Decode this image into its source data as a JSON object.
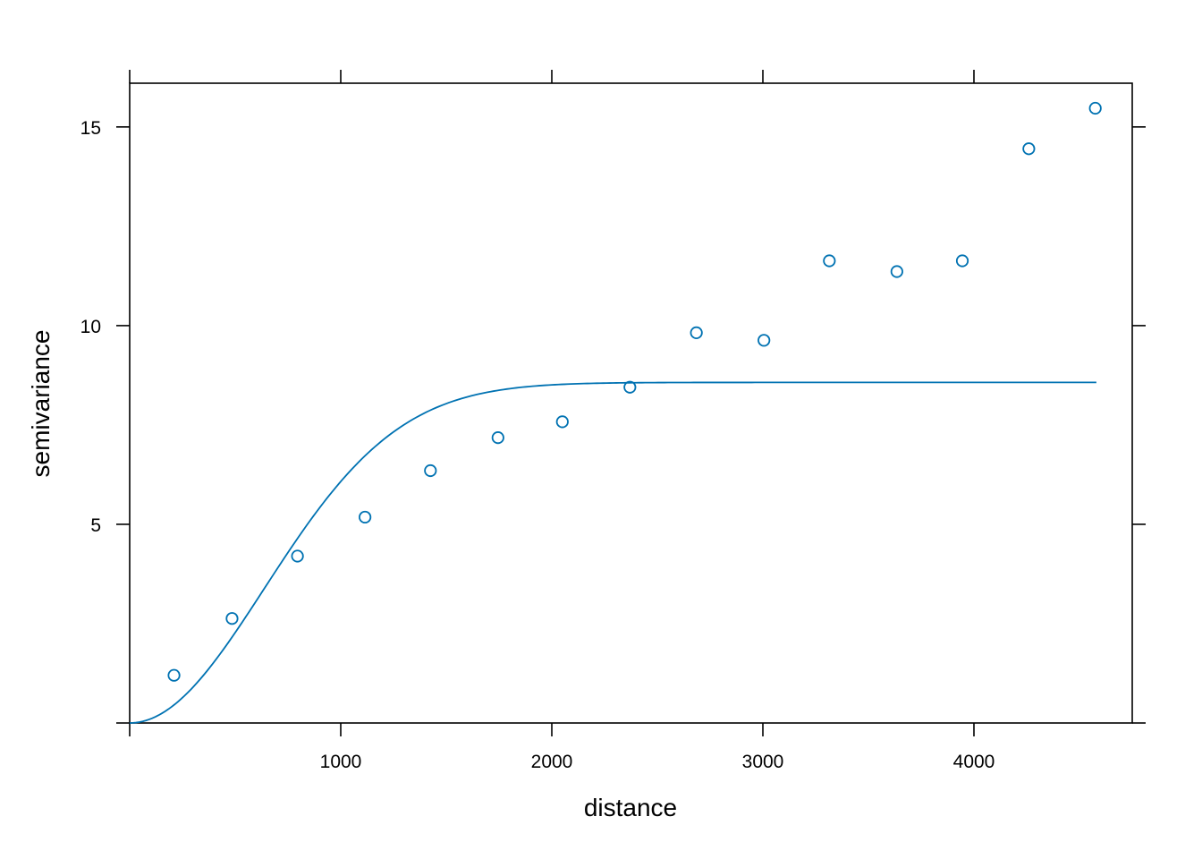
{
  "chart_data": {
    "type": "scatter",
    "title": "",
    "xlabel": "distance",
    "ylabel": "semivariance",
    "xlim": [
      0,
      4750
    ],
    "ylim": [
      0,
      16.1
    ],
    "x_ticks": [
      1000,
      2000,
      3000,
      4000
    ],
    "y_ticks": [
      5,
      10,
      15
    ],
    "grid": false,
    "legend": "none",
    "colors": {
      "series": "#0072b2",
      "axis": "#000000"
    },
    "points": {
      "x": [
        210,
        485,
        795,
        1115,
        1425,
        1745,
        2050,
        2370,
        2685,
        3005,
        3315,
        3635,
        3945,
        4260,
        4575
      ],
      "y": [
        1.2,
        2.63,
        4.2,
        5.18,
        6.35,
        7.18,
        7.58,
        8.45,
        9.82,
        9.63,
        11.63,
        11.36,
        11.63,
        14.45,
        15.47
      ]
    },
    "model_curve": {
      "model": "Gaussian",
      "sill": 8.57,
      "range": 900,
      "x_max": 4580
    }
  }
}
